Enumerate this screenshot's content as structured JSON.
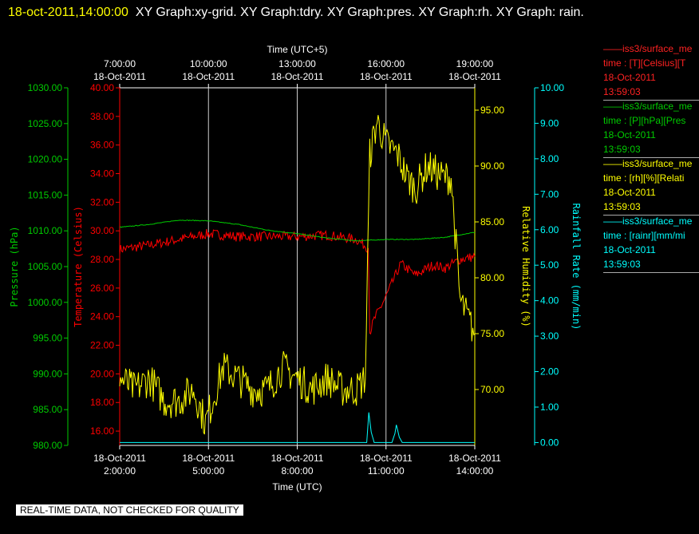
{
  "header": {
    "date": "18-oct-2011,14:00:00",
    "titles": "XY Graph:xy-grid.  XY Graph:tdry.  XY Graph:pres.  XY Graph:rh.  XY Graph: rain."
  },
  "qc_note": "REAL-TIME DATA, NOT CHECKED FOR QUALITY",
  "colors": {
    "background": "#000000",
    "pressure": "#00cc00",
    "temperature": "#ff0000",
    "humidity": "#ffff00",
    "rain": "#00ffff",
    "axis": "#ffffff"
  },
  "legend": [
    {
      "name": "——iss3/surface_me",
      "units": "time : [T][Celsius][T",
      "date": "18-Oct-2011",
      "time": "13:59:03",
      "color": "#ff2222"
    },
    {
      "name": "——iss3/surface_me",
      "units": "time : [P][hPa][Pres",
      "date": "18-Oct-2011",
      "time": "13:59:03",
      "color": "#00cc00"
    },
    {
      "name": "——iss3/surface_me",
      "units": "time : [rh][%][Relati",
      "date": "18-Oct-2011",
      "time": "13:59:03",
      "color": "#ffff00"
    },
    {
      "name": "——iss3/surface_me",
      "units": "time : [rainr][mm/mi",
      "date": "18-Oct-2011",
      "time": "13:59:03",
      "color": "#00ffff"
    }
  ],
  "chart_data": {
    "type": "line",
    "x_range_utc_hours": [
      2,
      14
    ],
    "x_top_label": "Time (UTC+5)",
    "x_bottom_label": "Time (UTC)",
    "x_ticks_bottom": [
      {
        "hour": 2,
        "date": "18-Oct-2011",
        "time": "2:00:00"
      },
      {
        "hour": 5,
        "date": "18-Oct-2011",
        "time": "5:00:00"
      },
      {
        "hour": 8,
        "date": "18-Oct-2011",
        "time": "8:00:00"
      },
      {
        "hour": 11,
        "date": "18-Oct-2011",
        "time": "11:00:00"
      },
      {
        "hour": 14,
        "date": "18-Oct-2011",
        "time": "14:00:00"
      }
    ],
    "x_ticks_top": [
      {
        "hour": 2,
        "time": "7:00:00",
        "date": "18-Oct-2011"
      },
      {
        "hour": 5,
        "time": "10:00:00",
        "date": "18-Oct-2011"
      },
      {
        "hour": 8,
        "time": "13:00:00",
        "date": "18-Oct-2011"
      },
      {
        "hour": 11,
        "time": "16:00:00",
        "date": "18-Oct-2011"
      },
      {
        "hour": 14,
        "time": "19:00:00",
        "date": "18-Oct-2011"
      }
    ],
    "axes": {
      "pressure": {
        "label": "Pressure (hPa)",
        "range": [
          980,
          1030
        ],
        "ticks": [
          "980.00",
          "985.00",
          "990.00",
          "995.00",
          "1000.00",
          "1005.00",
          "1010.00",
          "1015.00",
          "1020.00",
          "1025.00",
          "1030.00"
        ]
      },
      "temperature": {
        "label": "Temperature (Celsius)",
        "range": [
          15,
          40
        ],
        "ticks": [
          "16.00",
          "18.00",
          "20.00",
          "22.00",
          "24.00",
          "26.00",
          "28.00",
          "30.00",
          "32.00",
          "34.00",
          "36.00",
          "38.00",
          "40.00"
        ]
      },
      "humidity": {
        "label": "Relative Humidity (%)",
        "range": [
          65,
          97
        ],
        "ticks": [
          "70.00",
          "75.00",
          "80.00",
          "85.00",
          "90.00",
          "95.00"
        ]
      },
      "rain": {
        "label": "Rainfall Rate (mm/min)",
        "range": [
          -0.08,
          10
        ],
        "ticks": [
          "0.00",
          "1.00",
          "2.00",
          "3.00",
          "4.00",
          "5.00",
          "6.00",
          "7.00",
          "8.00",
          "9.00",
          "10.00"
        ]
      }
    },
    "grid": true,
    "series": [
      {
        "name": "Temperature",
        "axis": "temperature",
        "x": [
          2,
          3,
          4,
          5,
          6,
          7,
          8,
          9,
          10,
          10.4,
          10.45,
          10.6,
          11,
          11.5,
          12,
          12.4,
          12.6,
          13,
          13.5,
          14
        ],
        "y": [
          28.7,
          29.0,
          29.4,
          29.8,
          29.6,
          29.6,
          29.6,
          29.7,
          29.4,
          28.8,
          22.9,
          23.8,
          25.4,
          27.7,
          26.9,
          27.4,
          27.6,
          27.4,
          28.0,
          28.2
        ]
      },
      {
        "name": "Pressure",
        "axis": "pressure",
        "x": [
          2,
          3,
          4,
          5,
          6,
          7,
          8,
          9,
          10,
          11,
          12,
          13,
          14
        ],
        "y": [
          1010.5,
          1010.9,
          1011.5,
          1011.4,
          1010.9,
          1010.1,
          1009.6,
          1009.0,
          1008.6,
          1008.8,
          1008.8,
          1009.1,
          1009.8
        ]
      },
      {
        "name": "Relative Humidity",
        "axis": "humidity",
        "x": [
          2,
          2.5,
          3,
          3.5,
          4,
          4.5,
          4.9,
          5.5,
          6,
          6.5,
          7,
          7.5,
          8,
          8.5,
          9,
          9.5,
          10,
          10.3,
          10.45,
          10.7,
          11,
          11.4,
          11.7,
          12,
          12.4,
          12.9,
          13.2,
          13.5,
          14
        ],
        "y": [
          71,
          70,
          71,
          69,
          69,
          70,
          67,
          72,
          71,
          70,
          70,
          72,
          71,
          70,
          71,
          70,
          70,
          71,
          91,
          94,
          92,
          91,
          89,
          88,
          90,
          89,
          89,
          78,
          75
        ]
      },
      {
        "name": "Rainfall Rate",
        "axis": "rain",
        "x": [
          2,
          10.3,
          10.35,
          10.42,
          10.5,
          10.6,
          10.8,
          11.2,
          11.3,
          11.35,
          11.45,
          11.55,
          11.7,
          14
        ],
        "y": [
          0,
          0,
          0,
          0.85,
          0.3,
          0,
          0,
          0,
          0.25,
          0.5,
          0.15,
          0,
          0,
          0
        ]
      }
    ]
  }
}
